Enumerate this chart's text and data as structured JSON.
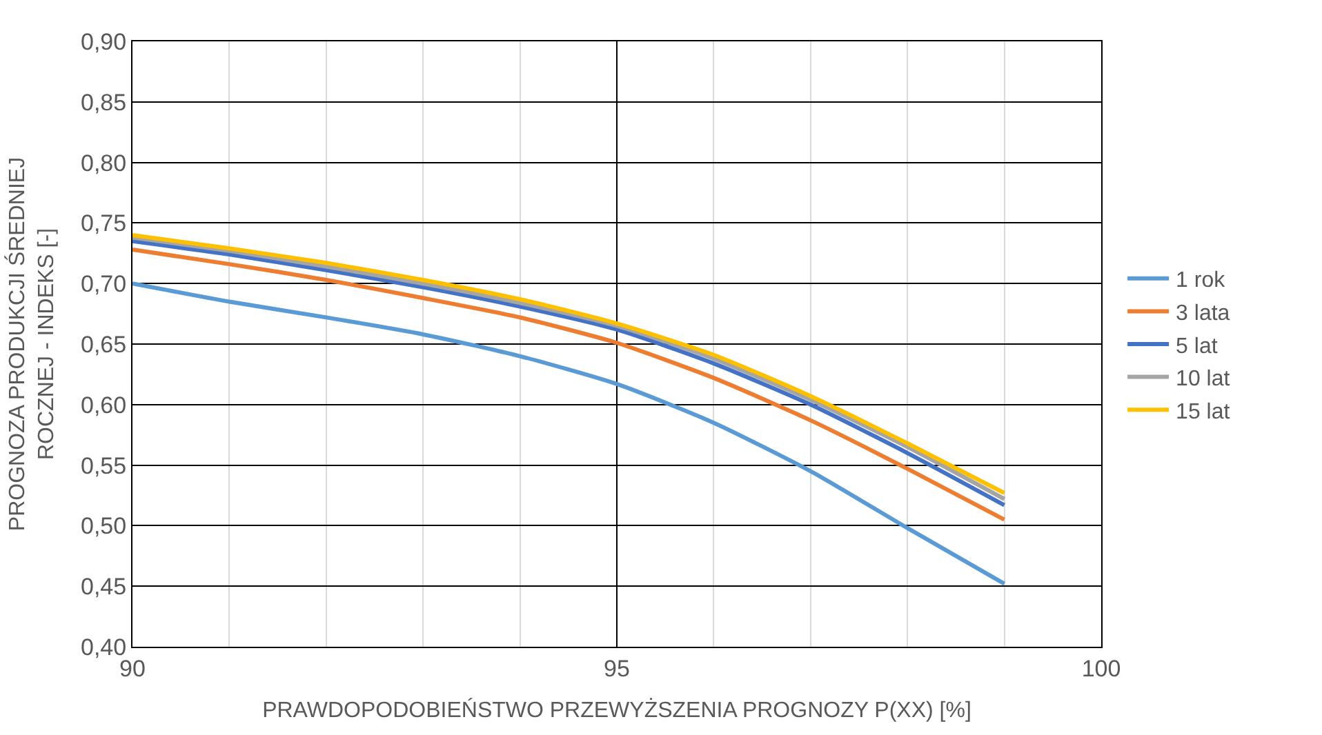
{
  "chart_data": {
    "type": "line",
    "xlabel": "PRAWDOPODOBIEŃSTWO PRZEWYŻSZENIA PROGNOZY P(XX) [%]",
    "ylabel": "PROGNOZA PRODUKCJI ŚREDNIEJ\nROCZNEJ - INDEKS [-]",
    "x": [
      90,
      91,
      92,
      93,
      94,
      95,
      96,
      97,
      98,
      99
    ],
    "series": [
      {
        "name": "1 rok",
        "color": "#5b9bd5",
        "values": [
          0.7,
          0.685,
          0.672,
          0.658,
          0.64,
          0.617,
          0.585,
          0.545,
          0.498,
          0.452
        ]
      },
      {
        "name": "3 lata",
        "color": "#ed7d31",
        "values": [
          0.728,
          0.716,
          0.703,
          0.688,
          0.672,
          0.651,
          0.622,
          0.587,
          0.547,
          0.505
        ]
      },
      {
        "name": "5 lat",
        "color": "#4472c4",
        "values": [
          0.735,
          0.724,
          0.711,
          0.697,
          0.681,
          0.662,
          0.634,
          0.6,
          0.56,
          0.517
        ]
      },
      {
        "name": "10 lat",
        "color": "#a5a5a5",
        "values": [
          0.738,
          0.727,
          0.714,
          0.7,
          0.684,
          0.665,
          0.638,
          0.604,
          0.565,
          0.522
        ]
      },
      {
        "name": "15 lat",
        "color": "#ffc000",
        "values": [
          0.74,
          0.729,
          0.717,
          0.703,
          0.687,
          0.667,
          0.641,
          0.607,
          0.568,
          0.527
        ]
      }
    ],
    "xlim": [
      90,
      100
    ],
    "xticks": [
      90,
      {
        "value": 91,
        "label": null
      },
      {
        "value": 92,
        "label": null
      },
      {
        "value": 93,
        "label": null
      },
      {
        "value": 94,
        "label": null
      },
      95,
      {
        "value": 96,
        "label": null
      },
      {
        "value": 97,
        "label": null
      },
      {
        "value": 98,
        "label": null
      },
      {
        "value": 99,
        "label": null
      },
      100
    ],
    "ylim": [
      0.4,
      0.9
    ],
    "yticks": [
      {
        "value": 0.4,
        "label": "0,40"
      },
      {
        "value": 0.45,
        "label": "0,45"
      },
      {
        "value": 0.5,
        "label": "0,50"
      },
      {
        "value": 0.55,
        "label": "0,55"
      },
      {
        "value": 0.6,
        "label": "0,60"
      },
      {
        "value": 0.65,
        "label": "0,65"
      },
      {
        "value": 0.7,
        "label": "0,70"
      },
      {
        "value": 0.75,
        "label": "0,75"
      },
      {
        "value": 0.8,
        "label": "0,80"
      },
      {
        "value": 0.85,
        "label": "0,85"
      },
      {
        "value": 0.9,
        "label": "0,90"
      }
    ],
    "grid": true,
    "legend": "right",
    "marker": "none",
    "line_style": "solid"
  }
}
